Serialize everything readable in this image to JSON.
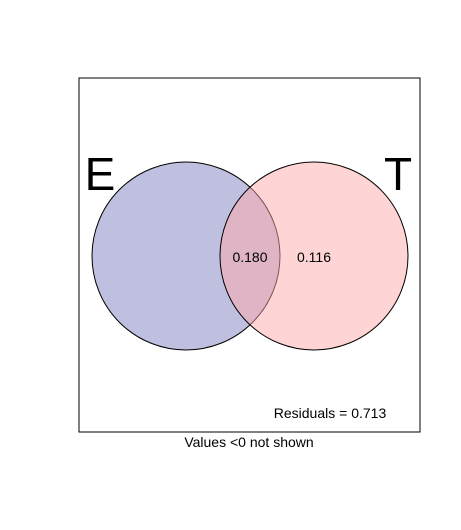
{
  "sets": [
    {
      "label": "E",
      "fill": "#8080c0"
    },
    {
      "label": "T",
      "fill": "#ffaaaa"
    }
  ],
  "regions": {
    "intersection": "0.180",
    "t_only": "0.116"
  },
  "residuals_text": "Residuals = 0.713",
  "footnote": "Values <0 not shown",
  "colors": {
    "outline": "#000000",
    "background": "#ffffff"
  }
}
